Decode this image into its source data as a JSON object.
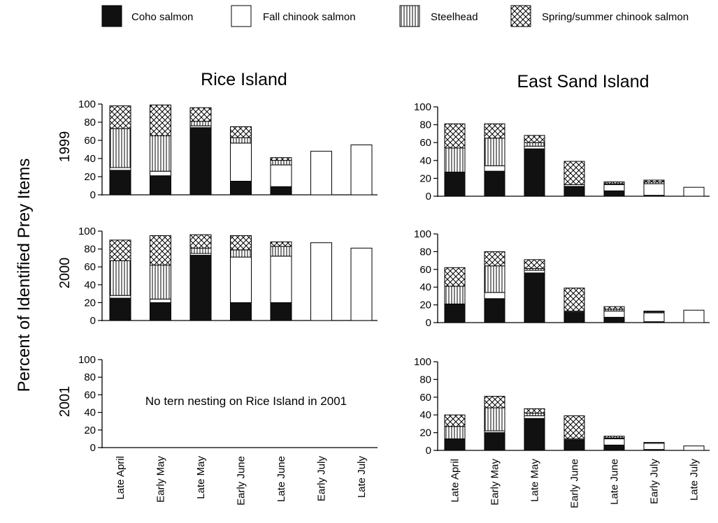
{
  "figure": {
    "ylabel": "Percent of Identified Prey Items",
    "column_titles": [
      "Rice Island",
      "East Sand Island"
    ],
    "years": [
      "1999",
      "2000",
      "2001"
    ],
    "legend": [
      {
        "label": "Coho salmon",
        "pattern": "solid"
      },
      {
        "label": "Fall chinook salmon",
        "pattern": "open"
      },
      {
        "label": "Steelhead",
        "pattern": "vertical-lines"
      },
      {
        "label": "Spring/summer chinook salmon",
        "pattern": "crosshatch"
      }
    ],
    "note": "No tern nesting on Rice Island in 2001",
    "colors": {
      "ink": "#000000",
      "fill_solid": "#111111",
      "background": "#ffffff"
    }
  },
  "chart_data": [
    {
      "type": "bar",
      "stacked": true,
      "colony": "Rice Island",
      "year": "1999",
      "categories": [
        "Late April",
        "Early May",
        "Late May",
        "Early June",
        "Late June",
        "Early July",
        "Late July"
      ],
      "yticks": [
        0,
        20,
        40,
        60,
        80,
        100
      ],
      "ylim": [
        0,
        100
      ],
      "series": [
        {
          "name": "Coho salmon",
          "values": [
            27,
            21,
            74,
            15,
            9,
            0,
            0
          ]
        },
        {
          "name": "Fall chinook salmon",
          "values": [
            3,
            5,
            2,
            42,
            24,
            48,
            55
          ]
        },
        {
          "name": "Steelhead",
          "values": [
            43,
            39,
            5,
            6,
            5,
            0,
            0
          ]
        },
        {
          "name": "Spring/summer chinook salmon",
          "values": [
            25,
            34,
            15,
            12,
            3,
            0,
            0
          ]
        }
      ]
    },
    {
      "type": "bar",
      "stacked": true,
      "colony": "Rice Island",
      "year": "2000",
      "categories": [
        "Late April",
        "Early May",
        "Late May",
        "Early June",
        "Late June",
        "Early July",
        "Late July"
      ],
      "yticks": [
        0,
        20,
        40,
        60,
        80,
        100
      ],
      "ylim": [
        0,
        100
      ],
      "series": [
        {
          "name": "Coho salmon",
          "values": [
            25,
            20,
            73,
            20,
            20,
            0,
            0
          ]
        },
        {
          "name": "Fall chinook salmon",
          "values": [
            3,
            4,
            2,
            51,
            52,
            87,
            81
          ]
        },
        {
          "name": "Steelhead",
          "values": [
            39,
            38,
            6,
            8,
            11,
            0,
            0
          ]
        },
        {
          "name": "Spring/summer chinook salmon",
          "values": [
            23,
            33,
            15,
            16,
            5,
            0,
            0
          ]
        }
      ]
    },
    {
      "type": "bar",
      "stacked": true,
      "colony": "Rice Island",
      "year": "2001",
      "categories": [
        "Late April",
        "Early May",
        "Late May",
        "Early June",
        "Late June",
        "Early July",
        "Late July"
      ],
      "yticks": [
        0,
        20,
        40,
        60,
        80,
        100
      ],
      "ylim": [
        0,
        100
      ],
      "series": [
        {
          "name": "Coho salmon",
          "values": [
            0,
            0,
            0,
            0,
            0,
            0,
            0
          ]
        },
        {
          "name": "Fall chinook salmon",
          "values": [
            0,
            0,
            0,
            0,
            0,
            0,
            0
          ]
        },
        {
          "name": "Steelhead",
          "values": [
            0,
            0,
            0,
            0,
            0,
            0,
            0
          ]
        },
        {
          "name": "Spring/summer chinook salmon",
          "values": [
            0,
            0,
            0,
            0,
            0,
            0,
            0
          ]
        }
      ]
    },
    {
      "type": "bar",
      "stacked": true,
      "colony": "East Sand Island",
      "year": "1999",
      "categories": [
        "Late April",
        "Early May",
        "Late May",
        "Early June",
        "Late June",
        "Early July",
        "Late July"
      ],
      "yticks": [
        0,
        20,
        40,
        60,
        80,
        100
      ],
      "ylim": [
        0,
        100
      ],
      "series": [
        {
          "name": "Coho salmon",
          "values": [
            27,
            28,
            53,
            11,
            6,
            1,
            0
          ]
        },
        {
          "name": "Fall chinook salmon",
          "values": [
            0,
            6,
            3,
            2,
            7,
            13,
            10
          ]
        },
        {
          "name": "Steelhead",
          "values": [
            27,
            31,
            4,
            0,
            1,
            2,
            0
          ]
        },
        {
          "name": "Spring/summer chinook salmon",
          "values": [
            27,
            16,
            8,
            26,
            2,
            2,
            0
          ]
        }
      ]
    },
    {
      "type": "bar",
      "stacked": true,
      "colony": "East Sand Island",
      "year": "2000",
      "categories": [
        "Late April",
        "Early May",
        "Late May",
        "Early June",
        "Late June",
        "Early July",
        "Late July"
      ],
      "yticks": [
        0,
        20,
        40,
        60,
        80,
        100
      ],
      "ylim": [
        0,
        100
      ],
      "series": [
        {
          "name": "Coho salmon",
          "values": [
            21,
            27,
            56,
            12,
            6,
            1,
            0
          ]
        },
        {
          "name": "Fall chinook salmon",
          "values": [
            0,
            7,
            3,
            1,
            7,
            10,
            14
          ]
        },
        {
          "name": "Steelhead",
          "values": [
            20,
            30,
            2,
            0,
            2,
            1,
            0
          ]
        },
        {
          "name": "Spring/summer chinook salmon",
          "values": [
            21,
            16,
            10,
            26,
            3,
            1,
            0
          ]
        }
      ]
    },
    {
      "type": "bar",
      "stacked": true,
      "colony": "East Sand Island",
      "year": "2001",
      "categories": [
        "Late April",
        "Early May",
        "Late May",
        "Early June",
        "Late June",
        "Early July",
        "Late July"
      ],
      "yticks": [
        0,
        20,
        40,
        60,
        80,
        100
      ],
      "ylim": [
        0,
        100
      ],
      "series": [
        {
          "name": "Coho salmon",
          "values": [
            13,
            20,
            36,
            12,
            6,
            1,
            0
          ]
        },
        {
          "name": "Fall chinook salmon",
          "values": [
            0,
            2,
            3,
            1,
            7,
            7,
            5
          ]
        },
        {
          "name": "Steelhead",
          "values": [
            14,
            26,
            3,
            0,
            1,
            1,
            0
          ]
        },
        {
          "name": "Spring/summer chinook salmon",
          "values": [
            13,
            13,
            5,
            26,
            2,
            0,
            0
          ]
        }
      ]
    }
  ]
}
